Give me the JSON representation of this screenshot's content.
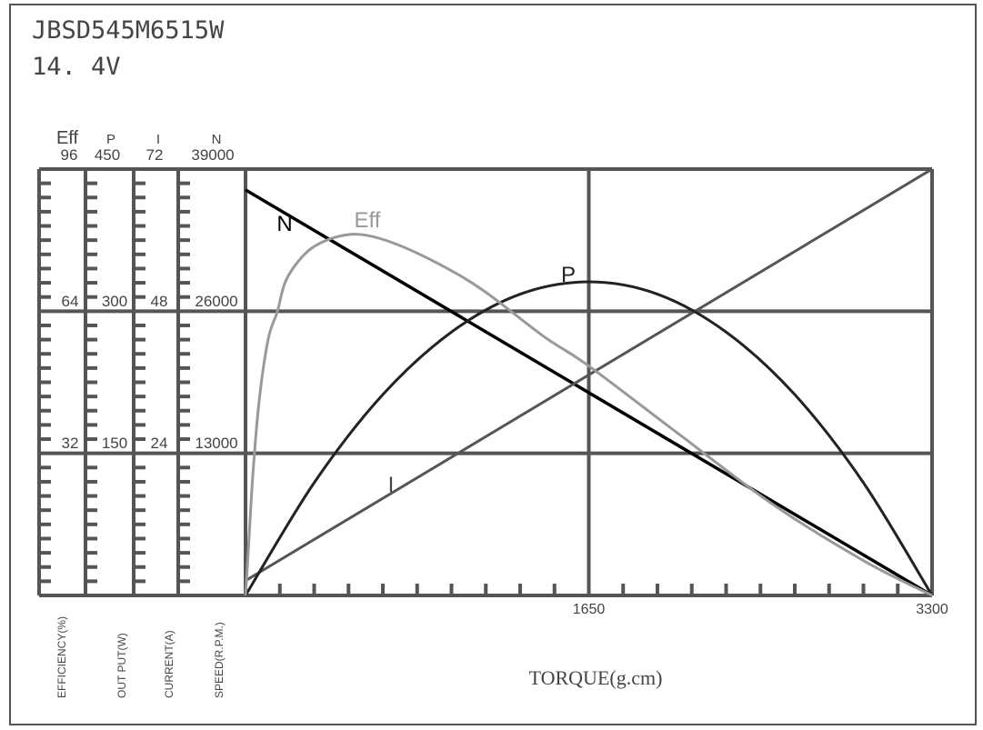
{
  "header": {
    "model": "JBSD545M6515W",
    "voltage": "14. 4V"
  },
  "chart_data": {
    "type": "line",
    "title": "JBSD545M6515W",
    "subtitle": "14. 4V",
    "xlabel": "TORQUE(g.cm)",
    "xlim": [
      0,
      3300
    ],
    "x_ticks": [
      "1650",
      "3300"
    ],
    "x_minor_divisions": 20,
    "grid": true,
    "y_axes": [
      {
        "key": "eff",
        "symbol": "Eff",
        "label": "EFFICIENCY(%)",
        "range": [
          0,
          96
        ],
        "ticks": [
          "32",
          "64",
          "96"
        ]
      },
      {
        "key": "p",
        "symbol": "P",
        "label": "OUT PUT(W)",
        "range": [
          0,
          450
        ],
        "ticks": [
          "150",
          "300",
          "450"
        ]
      },
      {
        "key": "i",
        "symbol": "I",
        "label": "CURRENT(A)",
        "range": [
          0,
          72
        ],
        "ticks": [
          "24",
          "48",
          "72"
        ]
      },
      {
        "key": "n",
        "symbol": "N",
        "label": "SPEED(R.P.M.)",
        "range": [
          0,
          39000
        ],
        "ticks": [
          "13000",
          "26000",
          "39000"
        ]
      }
    ],
    "series": [
      {
        "name": "N",
        "axis": "n",
        "color": "#000000",
        "x": [
          0,
          3300
        ],
        "y": [
          37100,
          0
        ]
      },
      {
        "name": "I",
        "axis": "i",
        "color": "#555555",
        "x": [
          0,
          3300
        ],
        "y": [
          2.5,
          72
        ]
      },
      {
        "name": "P",
        "axis": "p",
        "color": "#222222",
        "x": [
          0,
          330,
          660,
          990,
          1320,
          1650,
          1980,
          2310,
          2640,
          2970,
          3300
        ],
        "y": [
          0,
          119,
          212,
          278,
          318,
          331,
          318,
          278,
          212,
          119,
          0
        ]
      },
      {
        "name": "Eff",
        "axis": "eff",
        "color": "#999999",
        "x": [
          0,
          9,
          35,
          66,
          109,
          153,
          197,
          297,
          415,
          546,
          708,
          927,
          1145,
          1434,
          1652,
          2098,
          2535,
          2972,
          3300
        ],
        "y": [
          0,
          6.5,
          27,
          44,
          57.7,
          63.9,
          71.2,
          77.4,
          80.4,
          81.3,
          79.4,
          74.7,
          68.6,
          58.3,
          51.6,
          35.8,
          20.5,
          7.8,
          0
        ]
      }
    ]
  }
}
